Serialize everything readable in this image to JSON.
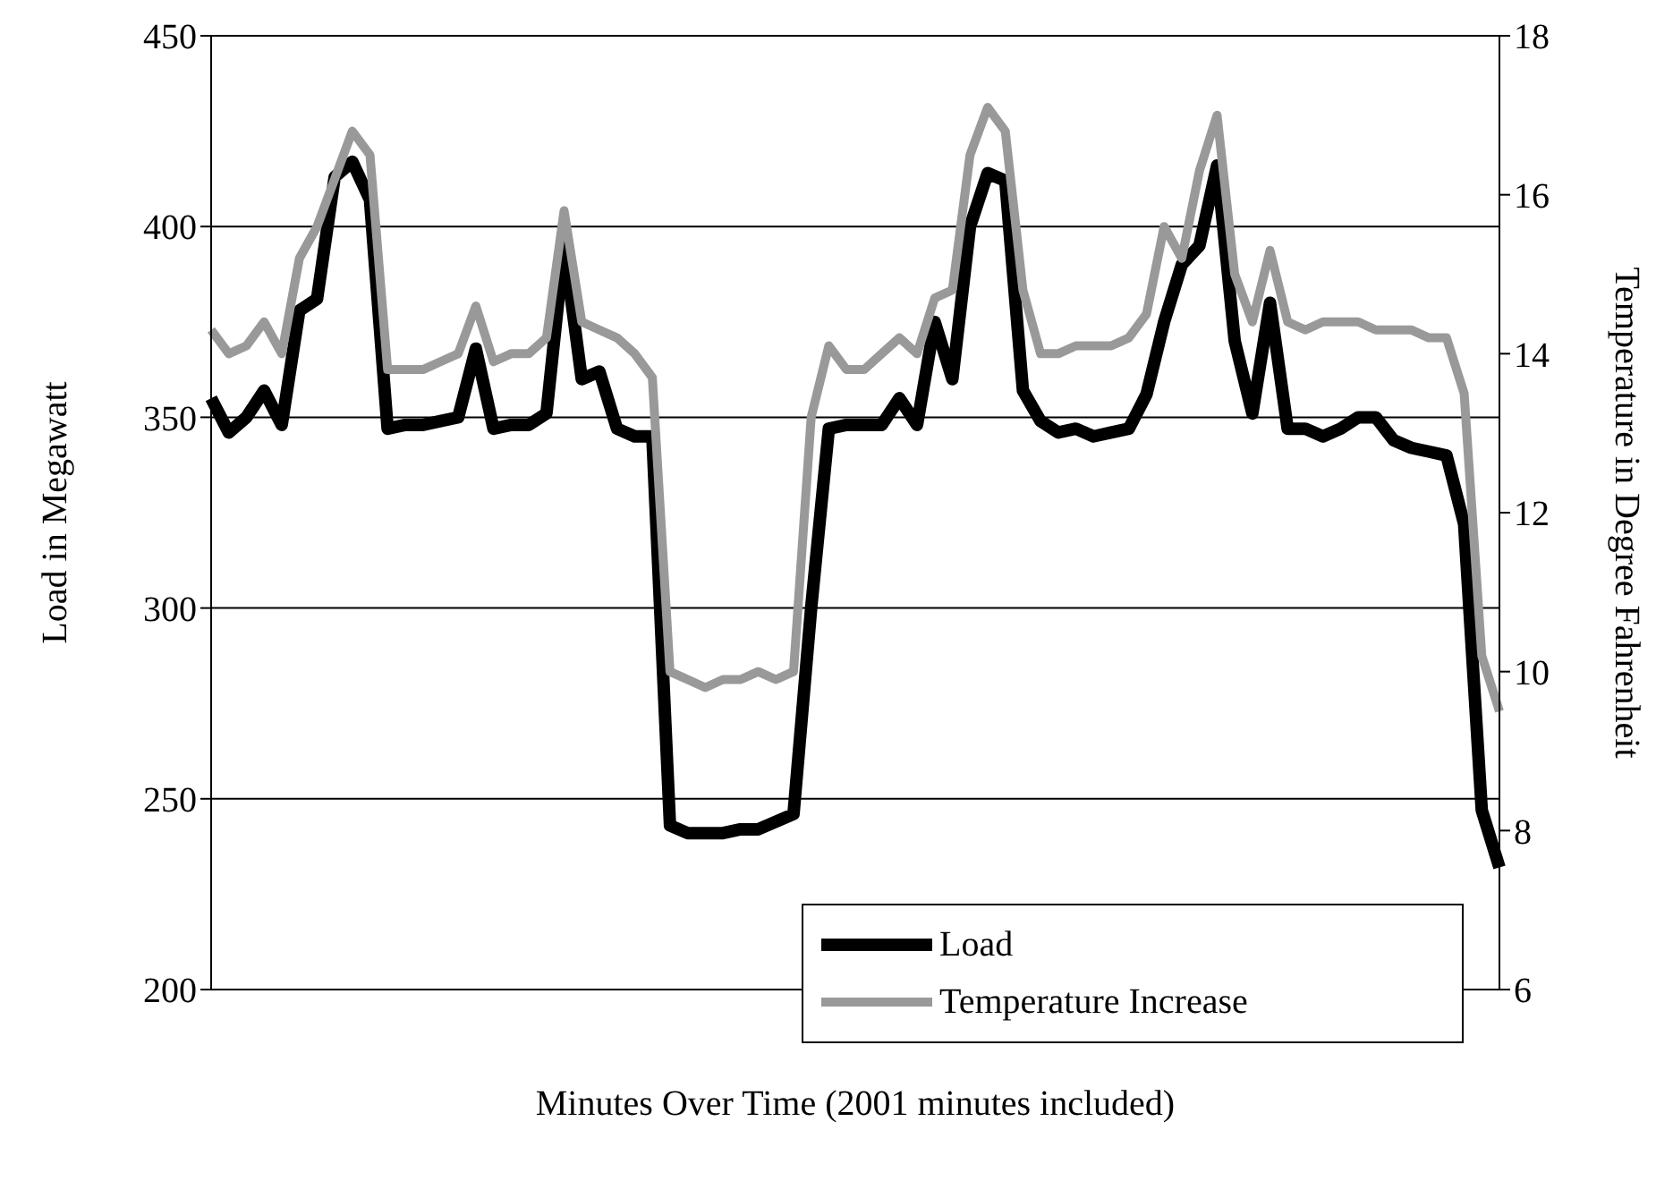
{
  "chart_data": {
    "type": "line",
    "xlabel": "Minutes Over Time (2001 minutes included)",
    "ylabel": "Load in Megawatt",
    "y2label": "Temperature in Degree Fahrenheit",
    "categories": [
      null,
      null,
      null,
      null,
      null,
      null,
      null,
      null,
      null,
      null,
      null,
      null,
      null,
      null,
      null,
      null,
      null,
      null,
      null,
      null,
      null,
      null,
      null,
      null,
      null,
      null,
      null,
      null,
      null,
      null,
      null,
      null,
      null,
      null,
      null,
      null,
      null,
      null,
      null,
      null,
      null,
      null,
      null,
      null,
      null,
      null,
      null,
      null,
      null,
      null,
      null,
      null,
      null,
      null,
      null,
      null,
      null,
      null,
      null,
      null,
      null,
      null,
      null,
      null,
      null,
      null,
      null,
      null,
      null,
      null,
      null,
      null,
      null,
      null
    ],
    "ylim": [
      200,
      450
    ],
    "yticks": [
      200,
      250,
      300,
      350,
      400,
      450
    ],
    "y2lim": [
      6,
      18
    ],
    "y2ticks": [
      6,
      8,
      10,
      12,
      14,
      16,
      18
    ],
    "series": [
      {
        "name": "Load",
        "color": "#000000",
        "values": [
          355,
          346,
          350,
          357,
          348,
          378,
          381,
          413,
          417,
          407,
          347,
          348,
          348,
          349,
          350,
          368,
          347,
          348,
          348,
          351,
          395,
          360,
          362,
          347,
          345,
          345,
          243,
          241,
          241,
          241,
          242,
          242,
          244,
          246,
          300,
          347,
          348,
          348,
          348,
          355,
          348,
          375,
          360,
          400,
          414,
          412,
          357,
          349,
          346,
          347,
          345,
          346,
          347,
          356,
          375,
          390,
          395,
          416,
          370,
          351,
          380,
          347,
          347,
          345,
          347,
          350,
          350,
          344,
          342,
          341,
          340,
          322,
          247,
          232
        ]
      },
      {
        "name": "Temperature Increase",
        "color": "#999999",
        "axis": "y2",
        "values": [
          14.3,
          14.0,
          14.1,
          14.4,
          14.0,
          15.2,
          15.6,
          16.2,
          16.8,
          16.5,
          13.8,
          13.8,
          13.8,
          13.9,
          14.0,
          14.6,
          13.9,
          14.0,
          14.0,
          14.2,
          15.8,
          14.4,
          14.3,
          14.2,
          14.0,
          13.7,
          10.0,
          9.9,
          9.8,
          9.9,
          9.9,
          10.0,
          9.9,
          10.0,
          13.2,
          14.1,
          13.8,
          13.8,
          14.0,
          14.2,
          14.0,
          14.7,
          14.8,
          16.5,
          17.1,
          16.8,
          14.8,
          14.0,
          14.0,
          14.1,
          14.1,
          14.1,
          14.2,
          14.5,
          15.6,
          15.2,
          16.3,
          17.0,
          15.0,
          14.4,
          15.3,
          14.4,
          14.3,
          14.4,
          14.4,
          14.4,
          14.3,
          14.3,
          14.3,
          14.2,
          14.2,
          13.5,
          10.2,
          9.5
        ]
      }
    ],
    "grid": "y",
    "legend": "bottom right",
    "tick_labels": "y",
    "marker": "none",
    "line_style": "solid"
  }
}
